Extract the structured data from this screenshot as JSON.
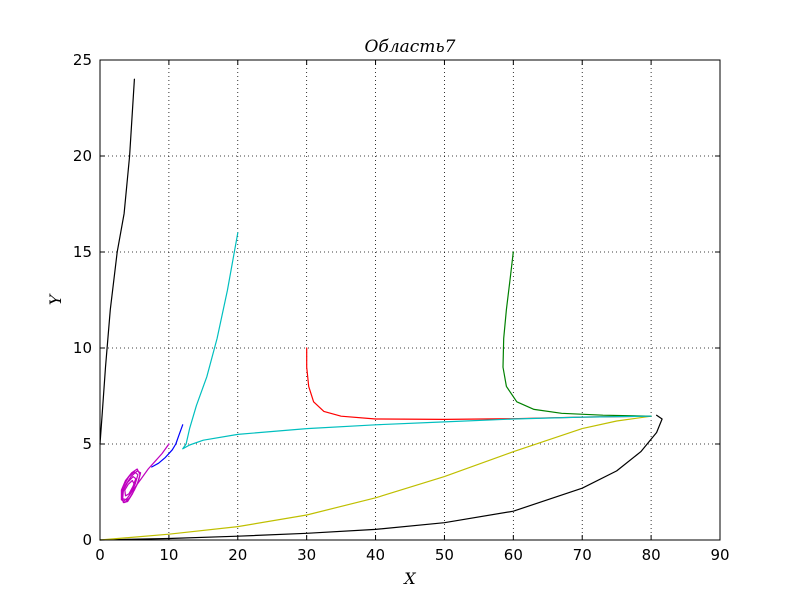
{
  "chart_data": {
    "type": "line",
    "title": "Область7",
    "xlabel": "X",
    "ylabel": "Y",
    "xlim": [
      0,
      90
    ],
    "ylim": [
      0,
      25
    ],
    "xticks": [
      0,
      10,
      20,
      30,
      40,
      50,
      60,
      70,
      80,
      90
    ],
    "yticks": [
      0,
      5,
      10,
      15,
      20,
      25
    ],
    "grid": true,
    "series": [
      {
        "color": "#000000",
        "points": [
          [
            5,
            24
          ],
          [
            4.3,
            20
          ],
          [
            3.5,
            17
          ],
          [
            2.5,
            15
          ],
          [
            1.5,
            12
          ],
          [
            0.8,
            9
          ],
          [
            0.3,
            6.5
          ],
          [
            0,
            5
          ]
        ]
      },
      {
        "color": "#000000",
        "points": [
          [
            0,
            0
          ],
          [
            10,
            0.08
          ],
          [
            20,
            0.2
          ],
          [
            30,
            0.35
          ],
          [
            40,
            0.55
          ],
          [
            50,
            0.9
          ],
          [
            60,
            1.5
          ],
          [
            70,
            2.7
          ],
          [
            75,
            3.6
          ],
          [
            78.5,
            4.6
          ],
          [
            80.8,
            5.6
          ],
          [
            81.6,
            6.3
          ],
          [
            80.8,
            6.5
          ]
        ]
      },
      {
        "color": "#bfbf00",
        "points": [
          [
            0,
            0
          ],
          [
            10,
            0.3
          ],
          [
            20,
            0.7
          ],
          [
            30,
            1.3
          ],
          [
            40,
            2.2
          ],
          [
            50,
            3.3
          ],
          [
            60,
            4.6
          ],
          [
            70,
            5.8
          ],
          [
            75,
            6.2
          ],
          [
            80,
            6.45
          ]
        ]
      },
      {
        "color": "#ff0000",
        "points": [
          [
            30,
            10
          ],
          [
            30,
            9
          ],
          [
            30.3,
            8
          ],
          [
            31,
            7.2
          ],
          [
            32.5,
            6.7
          ],
          [
            35,
            6.45
          ],
          [
            40,
            6.3
          ],
          [
            50,
            6.28
          ],
          [
            60,
            6.32
          ],
          [
            70,
            6.4
          ],
          [
            80,
            6.45
          ]
        ]
      },
      {
        "color": "#008000",
        "points": [
          [
            60,
            15
          ],
          [
            59.5,
            13.5
          ],
          [
            59,
            12
          ],
          [
            58.6,
            10.5
          ],
          [
            58.5,
            9
          ],
          [
            59,
            8
          ],
          [
            60.5,
            7.2
          ],
          [
            63,
            6.8
          ],
          [
            67,
            6.6
          ],
          [
            73,
            6.5
          ],
          [
            80,
            6.45
          ]
        ]
      },
      {
        "color": "#00bfbf",
        "points": [
          [
            20,
            16
          ],
          [
            18.5,
            13
          ],
          [
            17,
            10.5
          ],
          [
            15.5,
            8.5
          ],
          [
            14,
            7
          ],
          [
            13,
            5.8
          ],
          [
            12.5,
            5
          ],
          [
            12,
            4.75
          ],
          [
            13,
            4.95
          ],
          [
            15,
            5.2
          ],
          [
            20,
            5.5
          ],
          [
            30,
            5.8
          ],
          [
            40,
            6.0
          ],
          [
            50,
            6.15
          ],
          [
            60,
            6.3
          ],
          [
            70,
            6.4
          ],
          [
            80,
            6.45
          ]
        ]
      },
      {
        "color": "#0000ff",
        "points": [
          [
            12,
            6
          ],
          [
            11.5,
            5.5
          ],
          [
            11,
            5
          ],
          [
            10.5,
            4.7
          ],
          [
            9.5,
            4.3
          ],
          [
            8.5,
            4.0
          ],
          [
            7.5,
            3.8
          ]
        ]
      },
      {
        "color": "#bf00bf",
        "points": [
          [
            10,
            5
          ],
          [
            9,
            4.5
          ],
          [
            8,
            4.1
          ],
          [
            7,
            3.7
          ],
          [
            6,
            3.2
          ],
          [
            5,
            2.7
          ],
          [
            4,
            2.2
          ],
          [
            3.4,
            2.0
          ],
          [
            3.2,
            2.3
          ],
          [
            3.6,
            2.8
          ],
          [
            4.5,
            3.3
          ],
          [
            5.4,
            3.6
          ],
          [
            5.9,
            3.5
          ],
          [
            5.6,
            3.1
          ],
          [
            5,
            2.6
          ],
          [
            4.3,
            2.2
          ],
          [
            3.6,
            1.95
          ],
          [
            3.1,
            2.1
          ],
          [
            3.1,
            2.6
          ],
          [
            3.7,
            3.1
          ],
          [
            4.6,
            3.5
          ],
          [
            5.4,
            3.7
          ],
          [
            5.8,
            3.4
          ],
          [
            5.4,
            2.9
          ],
          [
            4.7,
            2.4
          ],
          [
            4.0,
            2.0
          ],
          [
            3.4,
            1.95
          ],
          [
            3.1,
            2.3
          ],
          [
            3.4,
            2.8
          ],
          [
            4.2,
            3.3
          ],
          [
            5.0,
            3.55
          ],
          [
            5.5,
            3.4
          ],
          [
            5.1,
            2.9
          ],
          [
            4.4,
            2.4
          ],
          [
            3.8,
            2.1
          ],
          [
            3.3,
            2.15
          ],
          [
            3.4,
            2.6
          ],
          [
            4.0,
            3.0
          ],
          [
            4.8,
            3.3
          ],
          [
            5.2,
            3.2
          ],
          [
            4.8,
            2.8
          ],
          [
            4.2,
            2.4
          ],
          [
            3.7,
            2.3
          ],
          [
            3.6,
            2.6
          ],
          [
            4.1,
            2.9
          ],
          [
            4.7,
            3.1
          ],
          [
            4.9,
            2.95
          ]
        ]
      }
    ]
  }
}
